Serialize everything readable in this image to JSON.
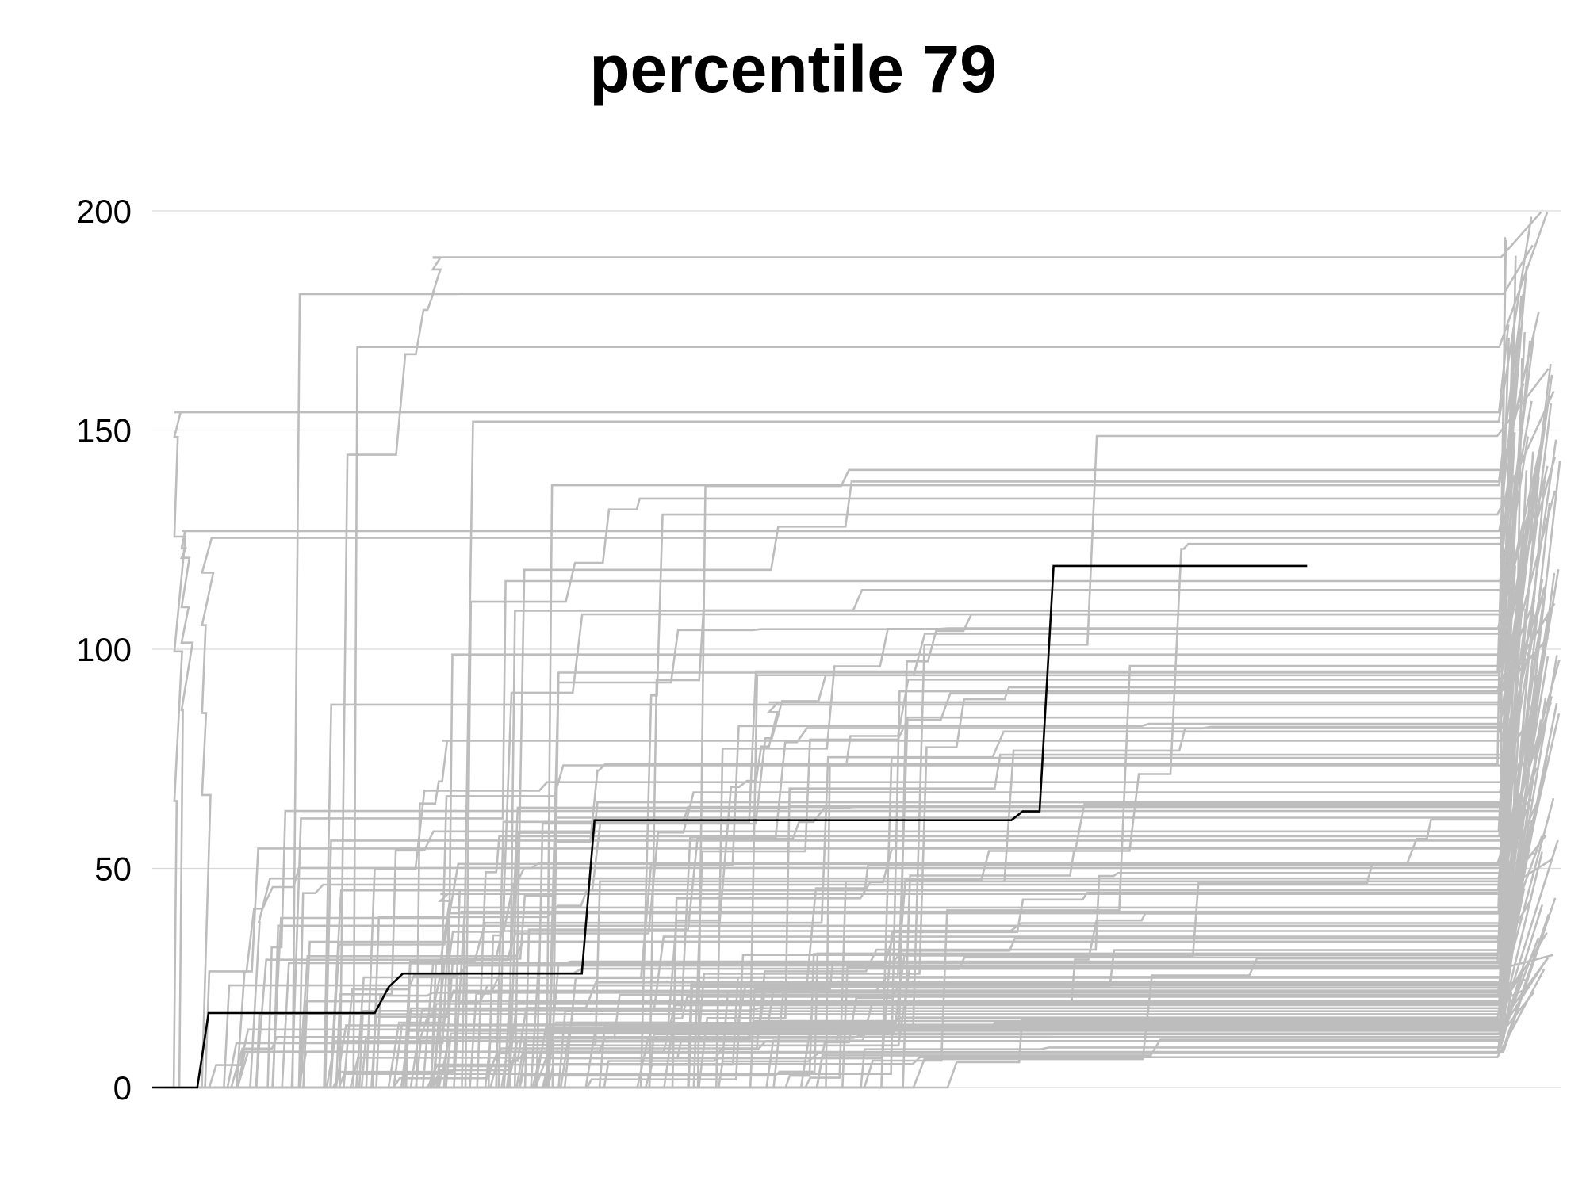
{
  "chart_data": {
    "type": "line",
    "title": "percentile 79",
    "xlabel": "",
    "ylabel": "",
    "ylim": [
      0,
      200
    ],
    "xlim": [
      0,
      1000
    ],
    "yticks": [
      0,
      50,
      100,
      150,
      200
    ],
    "grid": true,
    "legend": "none",
    "colors": {
      "highlight": "#000000",
      "background": "#bdbdbd",
      "grid": "#d9d9d9"
    },
    "highlight_series": {
      "x": [
        0,
        32,
        40,
        158,
        168,
        178,
        305,
        314,
        610,
        618,
        630,
        640,
        820
      ],
      "y": [
        0,
        0,
        17,
        17,
        23,
        26,
        26,
        61,
        61,
        63,
        63,
        119,
        119
      ]
    },
    "background_series_count": 140,
    "background_series_end": {
      "x_range": [
        960,
        1000
      ],
      "y_max": 200
    }
  }
}
